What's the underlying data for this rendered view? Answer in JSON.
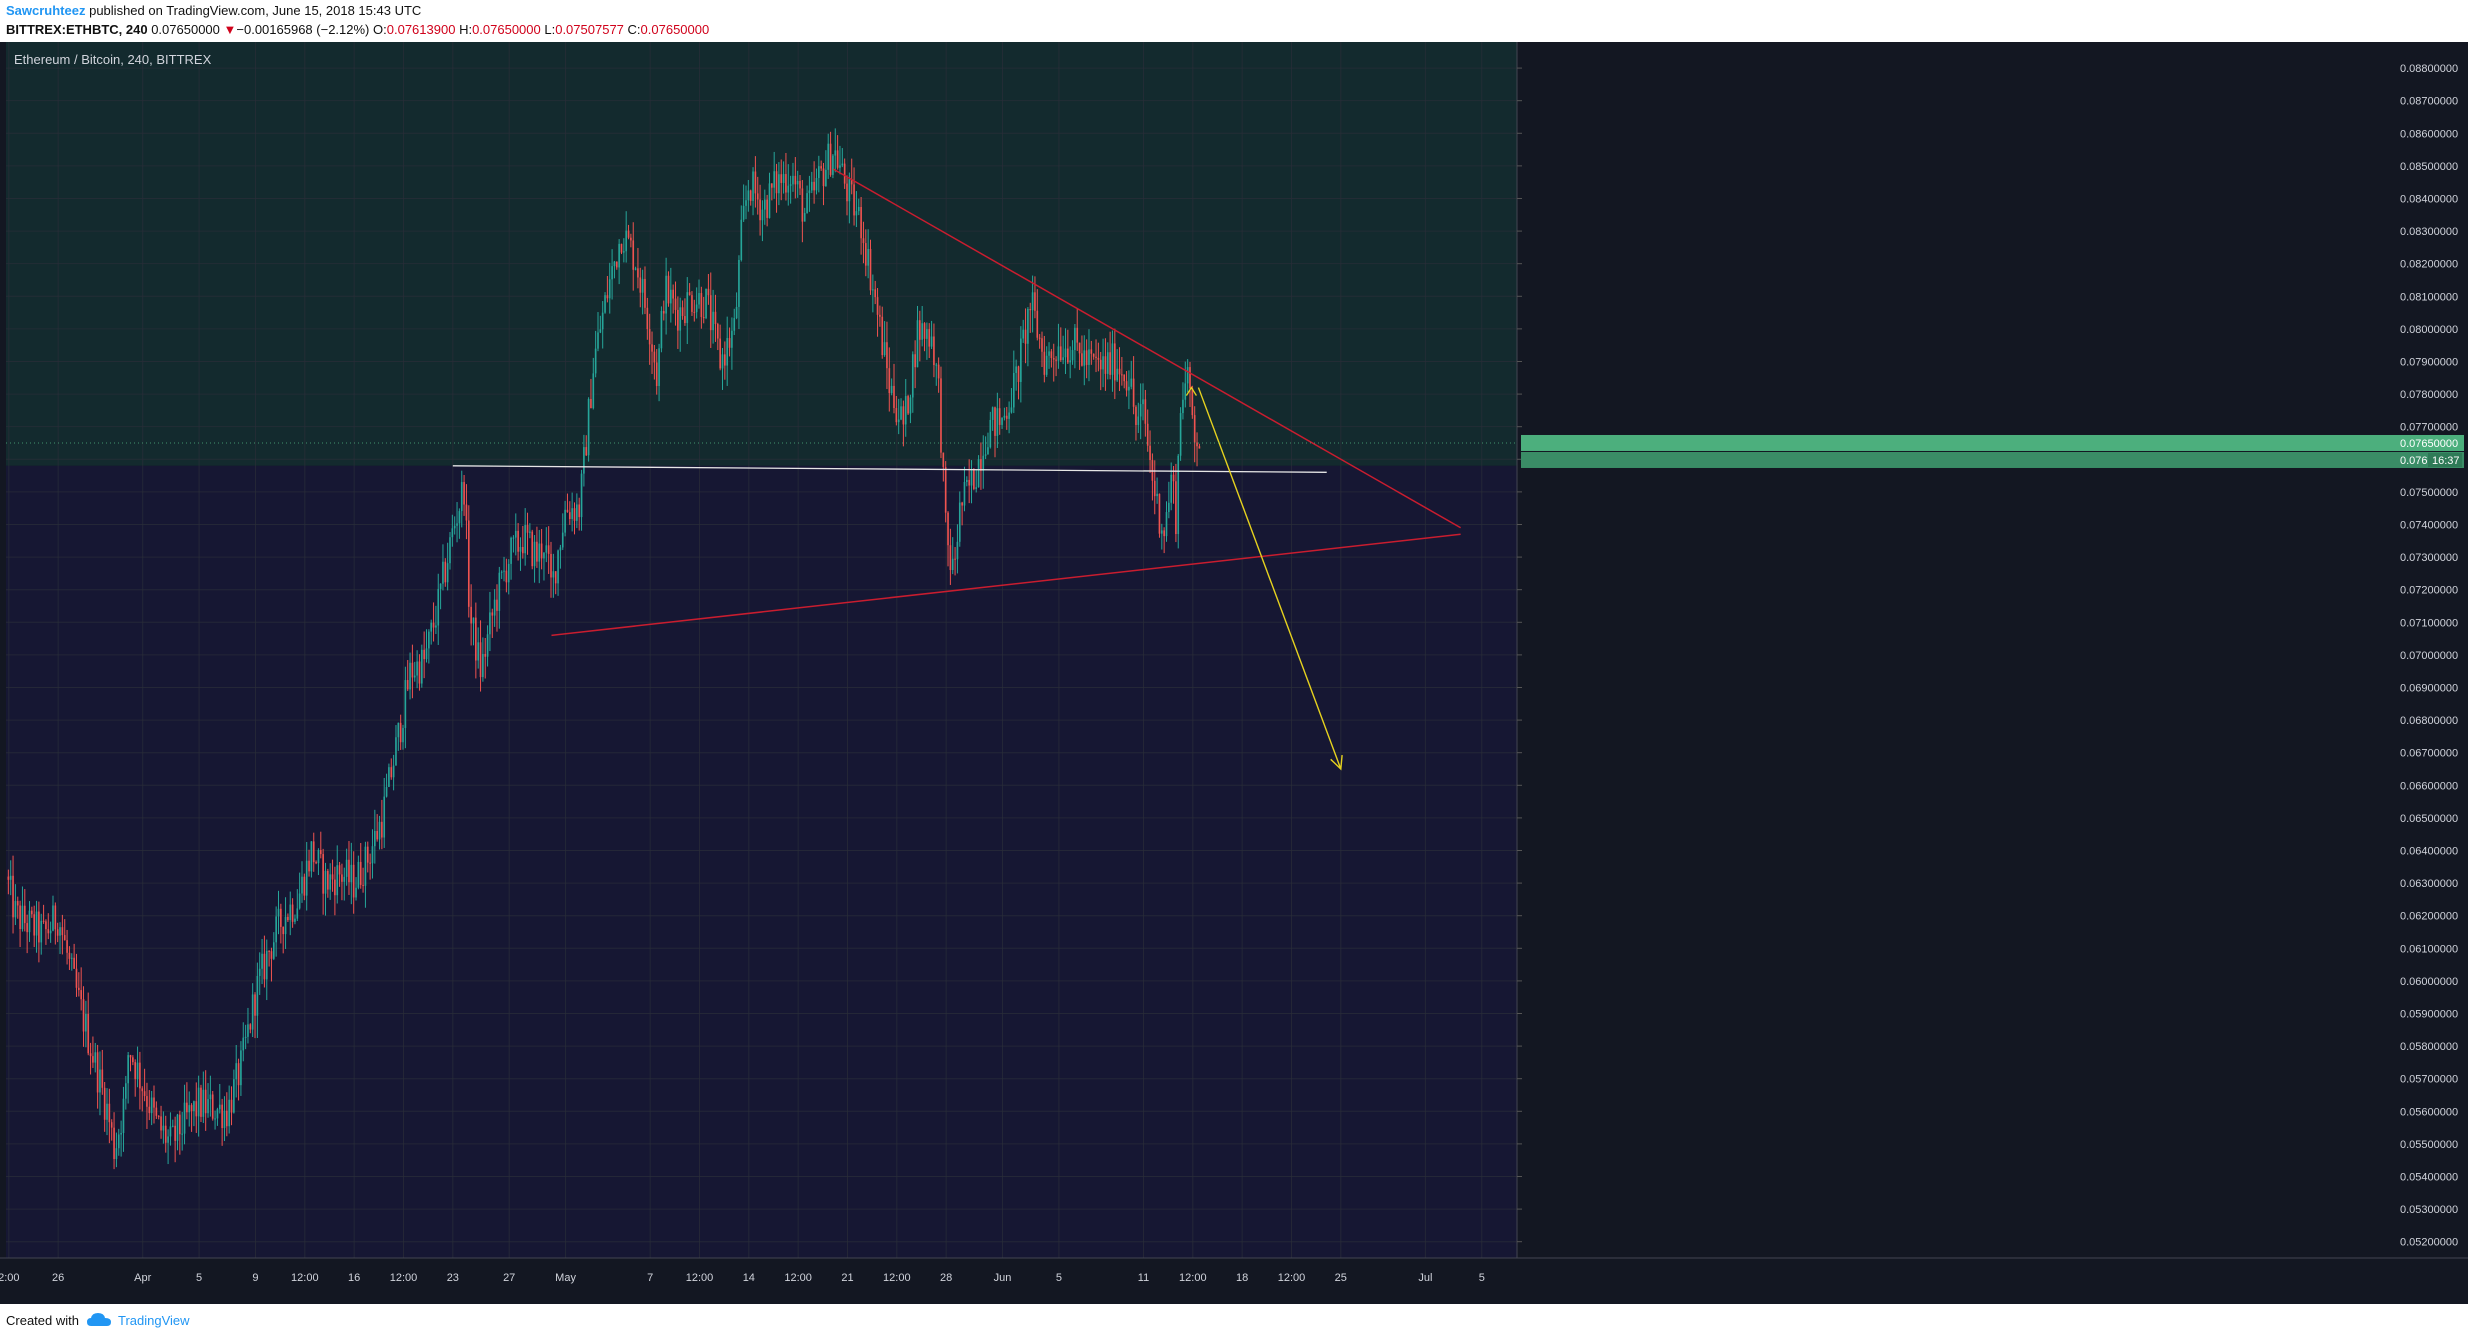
{
  "header": {
    "author": "Sawcruhteez",
    "published_text": " published on TradingView.com, June 15, 2018 15:43 UTC",
    "symbol": "BITTREX:ETHBTC, 240",
    "last": "0.07650000",
    "change_arrow": "▼",
    "change": "−0.00165968 (−2.12%)",
    "o_label": "O:",
    "o_value": "0.07613900",
    "h_label": "H:",
    "h_value": "0.07650000",
    "l_label": "L:",
    "l_value": "0.07507577",
    "c_label": "C:",
    "c_value": "0.07650000"
  },
  "footer": {
    "created_with": "Created with",
    "brand": "TradingView"
  },
  "colors": {
    "background": "#131722",
    "upper_zone": "#132a2e",
    "lower_zone": "#161733",
    "up_candle": "#26a69a",
    "down_candle": "#ef5350",
    "trendline": "#c91d2f",
    "support": "#e6e6e6",
    "projection": "#e6d21f",
    "price_tag": "#4caf7d"
  },
  "chart_data": {
    "type": "candlestick",
    "title": "Ethereum / Bitcoin, 240, BITTREX",
    "xlabel": "",
    "ylabel": "",
    "ylim": [
      0.0515,
      0.0888
    ],
    "y_ticks": [
      "0.05200000",
      "0.05300000",
      "0.05400000",
      "0.05500000",
      "0.05600000",
      "0.05700000",
      "0.05800000",
      "0.05900000",
      "0.06000000",
      "0.06100000",
      "0.06200000",
      "0.06300000",
      "0.06400000",
      "0.06500000",
      "0.06600000",
      "0.06700000",
      "0.06800000",
      "0.06900000",
      "0.07000000",
      "0.07100000",
      "0.07200000",
      "0.07300000",
      "0.07400000",
      "0.07500000",
      "0.07600000",
      "0.07700000",
      "0.07800000",
      "0.07900000",
      "0.08000000",
      "0.08100000",
      "0.08200000",
      "0.08300000",
      "0.08400000",
      "0.08500000",
      "0.08600000",
      "0.08700000",
      "0.08800000"
    ],
    "x_ticks": [
      {
        "day": 22.5,
        "label": "2:00"
      },
      {
        "day": 26,
        "label": "26"
      },
      {
        "day": 32,
        "label": "Apr"
      },
      {
        "day": 36,
        "label": "5"
      },
      {
        "day": 40,
        "label": "9"
      },
      {
        "day": 43.5,
        "label": "12:00"
      },
      {
        "day": 47,
        "label": "16"
      },
      {
        "day": 50.5,
        "label": "12:00"
      },
      {
        "day": 54,
        "label": "23"
      },
      {
        "day": 58,
        "label": "27"
      },
      {
        "day": 62,
        "label": "May"
      },
      {
        "day": 68,
        "label": "7"
      },
      {
        "day": 71.5,
        "label": "12:00"
      },
      {
        "day": 75,
        "label": "14"
      },
      {
        "day": 78.5,
        "label": "12:00"
      },
      {
        "day": 82,
        "label": "21"
      },
      {
        "day": 85.5,
        "label": "12:00"
      },
      {
        "day": 89,
        "label": "28"
      },
      {
        "day": 93,
        "label": "Jun"
      },
      {
        "day": 97,
        "label": "5"
      },
      {
        "day": 103,
        "label": "11"
      },
      {
        "day": 106.5,
        "label": "12:00"
      },
      {
        "day": 110,
        "label": "18"
      },
      {
        "day": 113.5,
        "label": "12:00"
      },
      {
        "day": 117,
        "label": "25"
      },
      {
        "day": 123,
        "label": "Jul"
      },
      {
        "day": 127,
        "label": "5"
      }
    ],
    "xlim_days": [
      22.3,
      129.5
    ],
    "bars_per_day": 6,
    "x_unit_note": "days since 2018-03-01",
    "price_path": [
      [
        22.3,
        0.0632
      ],
      [
        23,
        0.062
      ],
      [
        25,
        0.0614
      ],
      [
        26,
        0.062
      ],
      [
        27,
        0.0601
      ],
      [
        28,
        0.0585
      ],
      [
        29.5,
        0.056
      ],
      [
        30,
        0.0548
      ],
      [
        30.8,
        0.0565
      ],
      [
        31,
        0.058
      ],
      [
        32,
        0.0568
      ],
      [
        33,
        0.0556
      ],
      [
        34,
        0.055
      ],
      [
        35,
        0.0557
      ],
      [
        36,
        0.0562
      ],
      [
        38,
        0.056
      ],
      [
        39,
        0.0574
      ],
      [
        40,
        0.0596
      ],
      [
        41,
        0.061
      ],
      [
        42,
        0.062
      ],
      [
        43,
        0.0625
      ],
      [
        44,
        0.064
      ],
      [
        45,
        0.063
      ],
      [
        46,
        0.0633
      ],
      [
        47,
        0.063
      ],
      [
        48,
        0.0638
      ],
      [
        49,
        0.065
      ],
      [
        50,
        0.0672
      ],
      [
        51,
        0.0695
      ],
      [
        52,
        0.0698
      ],
      [
        53,
        0.0716
      ],
      [
        54,
        0.0738
      ],
      [
        54.8,
        0.0752
      ],
      [
        55.2,
        0.0712
      ],
      [
        56,
        0.0695
      ],
      [
        57,
        0.0716
      ],
      [
        58,
        0.073
      ],
      [
        59,
        0.0736
      ],
      [
        60,
        0.073
      ],
      [
        60.5,
        0.0735
      ],
      [
        61,
        0.072
      ],
      [
        61.5,
        0.0733
      ],
      [
        62,
        0.0745
      ],
      [
        63,
        0.0745
      ],
      [
        64,
        0.079
      ],
      [
        65,
        0.0812
      ],
      [
        66,
        0.083
      ],
      [
        67,
        0.0821
      ],
      [
        68,
        0.08
      ],
      [
        68.5,
        0.0785
      ],
      [
        69,
        0.0812
      ],
      [
        70,
        0.0805
      ],
      [
        71,
        0.081
      ],
      [
        72,
        0.0808
      ],
      [
        73,
        0.079
      ],
      [
        74,
        0.08
      ],
      [
        74.5,
        0.083
      ],
      [
        75,
        0.0845
      ],
      [
        76,
        0.0837
      ],
      [
        77,
        0.0845
      ],
      [
        78,
        0.0848
      ],
      [
        79,
        0.0835
      ],
      [
        80,
        0.0846
      ],
      [
        81,
        0.0855
      ],
      [
        81.3,
        0.0852
      ],
      [
        82,
        0.0842
      ],
      [
        83,
        0.0832
      ],
      [
        84,
        0.0808
      ],
      [
        85,
        0.0782
      ],
      [
        86,
        0.077
      ],
      [
        87,
        0.08
      ],
      [
        88,
        0.0798
      ],
      [
        88.5,
        0.078
      ],
      [
        89,
        0.0735
      ],
      [
        89.5,
        0.0725
      ],
      [
        90,
        0.0745
      ],
      [
        91,
        0.0755
      ],
      [
        92,
        0.077
      ],
      [
        93,
        0.0772
      ],
      [
        94,
        0.0785
      ],
      [
        95,
        0.0808
      ],
      [
        96,
        0.079
      ],
      [
        97,
        0.0795
      ],
      [
        98,
        0.0795
      ],
      [
        99,
        0.079
      ],
      [
        100,
        0.0788
      ],
      [
        101,
        0.079
      ],
      [
        102,
        0.0785
      ],
      [
        102.5,
        0.077
      ],
      [
        103,
        0.0775
      ],
      [
        103.5,
        0.0758
      ],
      [
        104,
        0.0745
      ],
      [
        104.5,
        0.0738
      ],
      [
        105,
        0.0755
      ],
      [
        105.3,
        0.0743
      ],
      [
        105.7,
        0.0782
      ],
      [
        106.2,
        0.0783
      ],
      [
        106.6,
        0.077
      ],
      [
        107,
        0.0765
      ]
    ],
    "last_price": "0.07650000",
    "last_price_value": 0.0765,
    "countdown_price": "0.076",
    "countdown": "16:37",
    "upper_zone_from": 0.0758,
    "annotations": {
      "descending_trendline": [
        [
          81,
          0.0849
        ],
        [
          125.5,
          0.0739
        ]
      ],
      "ascending_trendline": [
        [
          61,
          0.0706
        ],
        [
          125.5,
          0.0737
        ]
      ],
      "support_line": [
        [
          54,
          0.0758
        ],
        [
          116,
          0.0756
        ]
      ],
      "projection_arrow": [
        [
          106.9,
          0.0782
        ],
        [
          117,
          0.0665
        ]
      ],
      "small_arrow_head": [
        106.4,
        0.0782
      ]
    }
  }
}
